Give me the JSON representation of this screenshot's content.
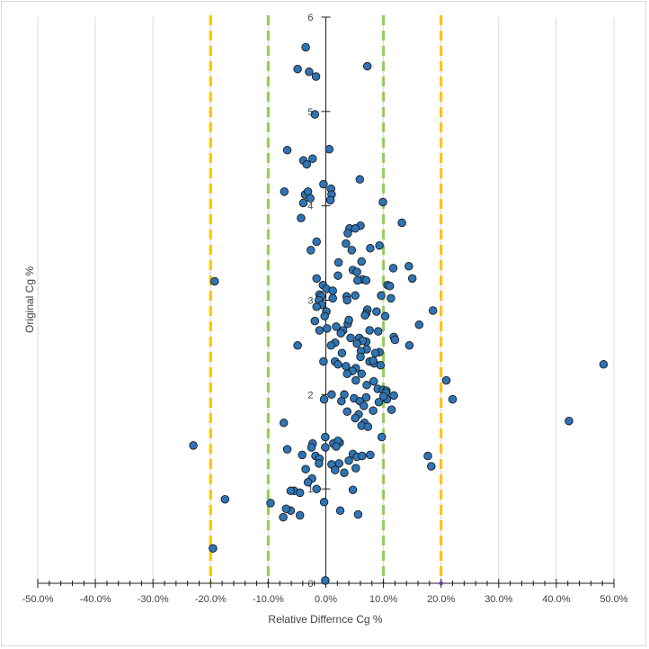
{
  "chart_data": {
    "type": "scatter",
    "title": "",
    "xlabel": "Relative Differnce Cg %",
    "ylabel": "Original Cg %",
    "xlim": [
      -50,
      50
    ],
    "ylim": [
      0,
      6
    ],
    "x_ticks": [
      -50,
      -40,
      -30,
      -20,
      -10,
      0,
      10,
      20,
      30,
      40,
      50
    ],
    "x_tick_labels": [
      "-50.0%",
      "-40.0%",
      "-30.0%",
      "-20.0%",
      "-10.0%",
      "0.0%",
      "10.0%",
      "20.0%",
      "30.0%",
      "40.0%",
      "50.0%"
    ],
    "y_ticks": [
      0,
      1,
      2,
      3,
      4,
      5,
      6
    ],
    "y_tick_labels": [
      "0",
      "1",
      "2",
      "3",
      "4",
      "5",
      "6"
    ],
    "grid": "vertical",
    "legend": "none",
    "colors": {
      "point_fill": "#2e75b6",
      "point_edge": "#1b1b1b",
      "limit_20": "#ffc000",
      "limit_10": "#92d050",
      "gridline": "#d9d9d9",
      "axis": "#1b1b1b"
    },
    "reference_lines": [
      {
        "name": "-20% limit",
        "x": -20,
        "color": "#ffc000"
      },
      {
        "name": "20% limit",
        "x": 20,
        "color": "#ffc000"
      },
      {
        "name": "-10% limit",
        "x": -10,
        "color": "#92d050"
      },
      {
        "name": "10% limit",
        "x": 10,
        "color": "#92d050"
      }
    ],
    "series": [
      {
        "name": "Cg",
        "points": [
          [
            -3.5,
            5.68
          ],
          [
            -4.9,
            5.45
          ],
          [
            -2.9,
            5.42
          ],
          [
            -1.7,
            5.37
          ],
          [
            7.2,
            5.48
          ],
          [
            -1.9,
            4.97
          ],
          [
            -6.7,
            4.59
          ],
          [
            0.6,
            4.6
          ],
          [
            -3.9,
            4.48
          ],
          [
            -3.3,
            4.44
          ],
          [
            -2.3,
            4.5
          ],
          [
            5.9,
            4.28
          ],
          [
            -0.4,
            4.23
          ],
          [
            -7.2,
            4.15
          ],
          [
            -3.6,
            4.12
          ],
          [
            -3.1,
            4.15
          ],
          [
            -2.7,
            4.08
          ],
          [
            0.9,
            4.18
          ],
          [
            1.0,
            4.12
          ],
          [
            9.9,
            4.04
          ],
          [
            0.8,
            4.06
          ],
          [
            -3.9,
            4.03
          ],
          [
            -4.3,
            3.87
          ],
          [
            13.2,
            3.82
          ],
          [
            6.0,
            3.79
          ],
          [
            4.1,
            3.76
          ],
          [
            5.1,
            3.76
          ],
          [
            3.8,
            3.71
          ],
          [
            -1.6,
            3.62
          ],
          [
            3.5,
            3.6
          ],
          [
            9.3,
            3.58
          ],
          [
            7.7,
            3.55
          ],
          [
            4.5,
            3.53
          ],
          [
            -2.6,
            3.53
          ],
          [
            2.2,
            3.4
          ],
          [
            6.2,
            3.41
          ],
          [
            14.4,
            3.36
          ],
          [
            11.7,
            3.34
          ],
          [
            4.7,
            3.32
          ],
          [
            5.4,
            3.3
          ],
          [
            -1.6,
            3.23
          ],
          [
            6.4,
            3.22
          ],
          [
            7.0,
            3.21
          ],
          [
            15.0,
            3.23
          ],
          [
            5.5,
            3.21
          ],
          [
            10.7,
            3.16
          ],
          [
            11.1,
            3.15
          ],
          [
            -0.5,
            3.16
          ],
          [
            0.1,
            3.12
          ],
          [
            1.2,
            3.1
          ],
          [
            -1.1,
            3.06
          ],
          [
            -0.8,
            3.04
          ],
          [
            3.6,
            3.04
          ],
          [
            5.1,
            3.05
          ],
          [
            9.6,
            3.05
          ],
          [
            1.2,
            3.02
          ],
          [
            -1.2,
            3.0
          ],
          [
            -0.7,
            2.95
          ],
          [
            3.7,
            3.0
          ],
          [
            11.3,
            3.02
          ],
          [
            -1.6,
            2.93
          ],
          [
            0.1,
            2.88
          ],
          [
            7.2,
            2.9
          ],
          [
            -0.2,
            2.83
          ],
          [
            8.8,
            2.88
          ],
          [
            7.0,
            2.86
          ],
          [
            18.6,
            2.89
          ],
          [
            10.3,
            2.83
          ],
          [
            6.8,
            2.84
          ],
          [
            -1.9,
            2.78
          ],
          [
            16.2,
            2.74
          ],
          [
            3.8,
            2.75
          ],
          [
            1.8,
            2.72
          ],
          [
            0.2,
            2.7
          ],
          [
            -1.1,
            2.68
          ],
          [
            3.0,
            2.68
          ],
          [
            7.6,
            2.68
          ],
          [
            2.6,
            2.65
          ],
          [
            9.1,
            2.67
          ],
          [
            5.8,
            2.6
          ],
          [
            11.8,
            2.61
          ],
          [
            4.3,
            2.6
          ],
          [
            7.0,
            2.56
          ],
          [
            12.0,
            2.58
          ],
          [
            6.4,
            2.57
          ],
          [
            1.6,
            2.55
          ],
          [
            -4.9,
            2.52
          ],
          [
            0.9,
            2.52
          ],
          [
            5.4,
            2.54
          ],
          [
            14.5,
            2.52
          ],
          [
            7.1,
            2.48
          ],
          [
            6.1,
            2.46
          ],
          [
            9.3,
            2.45
          ],
          [
            2.8,
            2.44
          ],
          [
            8.6,
            2.44
          ],
          [
            6.0,
            2.4
          ],
          [
            -0.4,
            2.35
          ],
          [
            1.6,
            2.35
          ],
          [
            7.6,
            2.35
          ],
          [
            3.5,
            2.3
          ],
          [
            8.4,
            2.33
          ],
          [
            9.5,
            2.31
          ],
          [
            5.2,
            2.28
          ],
          [
            2.1,
            2.32
          ],
          [
            4.6,
            2.25
          ],
          [
            6.2,
            2.22
          ],
          [
            3.7,
            2.22
          ],
          [
            5.2,
            2.15
          ],
          [
            8.3,
            2.14
          ],
          [
            20.9,
            2.15
          ],
          [
            7.1,
            2.1
          ],
          [
            9.0,
            2.06
          ],
          [
            9.9,
            2.05
          ],
          [
            10.5,
            2.04
          ],
          [
            1.0,
            2.0
          ],
          [
            10.4,
            2.02
          ],
          [
            3.2,
            2.0
          ],
          [
            11.8,
            1.99
          ],
          [
            7.0,
            1.97
          ],
          [
            4.9,
            1.96
          ],
          [
            2.7,
            1.93
          ],
          [
            -0.3,
            1.95
          ],
          [
            10.6,
            1.95
          ],
          [
            5.9,
            1.93
          ],
          [
            22.0,
            1.95
          ],
          [
            9.2,
            1.92
          ],
          [
            6.6,
            1.88
          ],
          [
            11.4,
            1.84
          ],
          [
            3.7,
            1.82
          ],
          [
            8.2,
            1.83
          ],
          [
            5.7,
            1.79
          ],
          [
            5.1,
            1.75
          ],
          [
            6.7,
            1.7
          ],
          [
            6.2,
            1.67
          ],
          [
            7.3,
            1.66
          ],
          [
            -7.3,
            1.7
          ],
          [
            42.2,
            1.72
          ],
          [
            48.2,
            2.32
          ],
          [
            -23.0,
            1.46
          ],
          [
            -0.1,
            1.55
          ],
          [
            9.7,
            1.55
          ],
          [
            1.3,
            1.48
          ],
          [
            2.4,
            1.49
          ],
          [
            2.1,
            1.51
          ],
          [
            -2.3,
            1.48
          ],
          [
            -2.5,
            1.44
          ],
          [
            -6.7,
            1.42
          ],
          [
            -0.1,
            1.44
          ],
          [
            1.8,
            1.45
          ],
          [
            -4.1,
            1.36
          ],
          [
            4.7,
            1.37
          ],
          [
            5.4,
            1.34
          ],
          [
            17.7,
            1.35
          ],
          [
            -1.8,
            1.35
          ],
          [
            6.3,
            1.35
          ],
          [
            7.7,
            1.36
          ],
          [
            -1.1,
            1.32
          ],
          [
            4.0,
            1.3
          ],
          [
            2.3,
            1.27
          ],
          [
            -1.2,
            1.27
          ],
          [
            1.0,
            1.26
          ],
          [
            18.3,
            1.24
          ],
          [
            5.2,
            1.22
          ],
          [
            -3.5,
            1.21
          ],
          [
            1.6,
            1.2
          ],
          [
            3.2,
            1.17
          ],
          [
            -2.4,
            1.11
          ],
          [
            -3.1,
            1.07
          ],
          [
            -5.5,
            0.98
          ],
          [
            -6.1,
            0.98
          ],
          [
            -4.5,
            0.96
          ],
          [
            -1.6,
            1.0
          ],
          [
            4.7,
            0.99
          ],
          [
            -17.5,
            0.89
          ],
          [
            -9.6,
            0.85
          ],
          [
            -0.3,
            0.86
          ],
          [
            -6.1,
            0.77
          ],
          [
            2.5,
            0.77
          ],
          [
            -7.4,
            0.7
          ],
          [
            -4.5,
            0.72
          ],
          [
            5.6,
            0.73
          ],
          [
            -19.6,
            0.37
          ],
          [
            -0.1,
            0.03
          ],
          [
            -19.3,
            3.2
          ],
          [
            -6.9,
            0.79
          ],
          [
            2.1,
            3.26
          ],
          [
            4.0,
            2.79
          ],
          [
            8.2,
            2.36
          ],
          [
            10.0,
            1.98
          ]
        ]
      }
    ]
  }
}
